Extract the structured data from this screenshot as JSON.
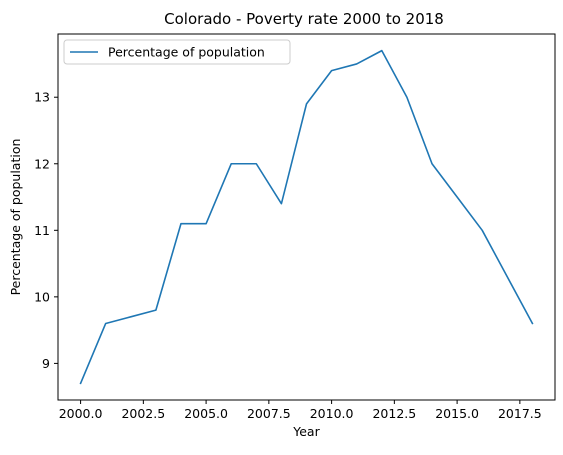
{
  "chart_data": {
    "type": "line",
    "title": "Colorado - Poverty rate 2000 to 2018",
    "xlabel": "Year",
    "ylabel": "Percentage of population",
    "x": [
      2000,
      2001,
      2002,
      2003,
      2004,
      2005,
      2006,
      2007,
      2008,
      2009,
      2010,
      2011,
      2012,
      2013,
      2014,
      2015,
      2016,
      2017,
      2018
    ],
    "series": [
      {
        "name": "Percentage of population",
        "color": "#1f77b4",
        "values": [
          8.7,
          9.6,
          9.7,
          9.8,
          11.1,
          11.1,
          12.0,
          12.0,
          11.4,
          12.9,
          13.4,
          13.5,
          13.7,
          13.0,
          12.0,
          11.5,
          11.0,
          10.3,
          9.6
        ]
      }
    ],
    "xlim": [
      1999.1,
      2018.9
    ],
    "ylim": [
      8.45,
      13.95
    ],
    "x_ticks": [
      2000.0,
      2002.5,
      2005.0,
      2007.5,
      2010.0,
      2012.5,
      2015.0,
      2017.5
    ],
    "x_tick_labels": [
      "2000.0",
      "2002.5",
      "2005.0",
      "2007.5",
      "2010.0",
      "2012.5",
      "2015.0",
      "2017.5"
    ],
    "y_ticks": [
      9,
      10,
      11,
      12,
      13
    ],
    "y_tick_labels": [
      "9",
      "10",
      "11",
      "12",
      "13"
    ],
    "grid": false,
    "legend_position": "upper-left"
  }
}
